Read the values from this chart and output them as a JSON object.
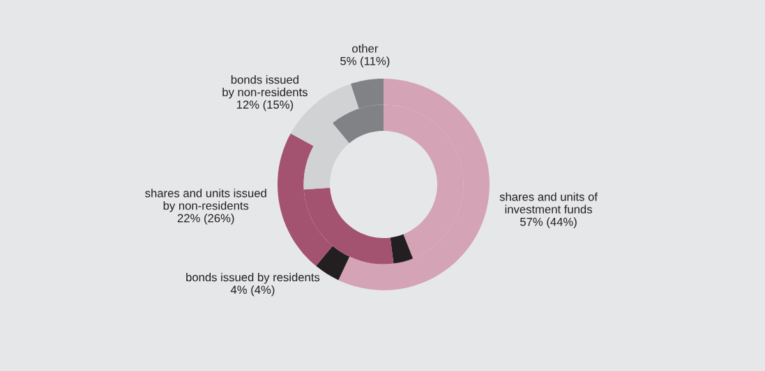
{
  "chart_data": {
    "type": "donut",
    "categories": [
      "shares and units of\ninvestment funds",
      "bonds issued by residents",
      "shares and units issued\nby non-residents",
      "bonds issued\nby non-residents",
      "other"
    ],
    "colors": [
      "#d4a3b5",
      "#231f20",
      "#a35270",
      "#d1d2d4",
      "#808285"
    ],
    "series": [
      {
        "values": [
          57,
          4,
          22,
          12,
          5
        ],
        "value_labels": [
          "57%",
          "4%",
          "22%",
          "12%",
          "5%"
        ]
      },
      {
        "values": [
          44,
          4,
          26,
          15,
          11
        ],
        "value_labels": [
          "(44%)",
          "(4%)",
          "(26%)",
          "(15%)",
          "(11%)"
        ]
      }
    ],
    "legend": false
  }
}
